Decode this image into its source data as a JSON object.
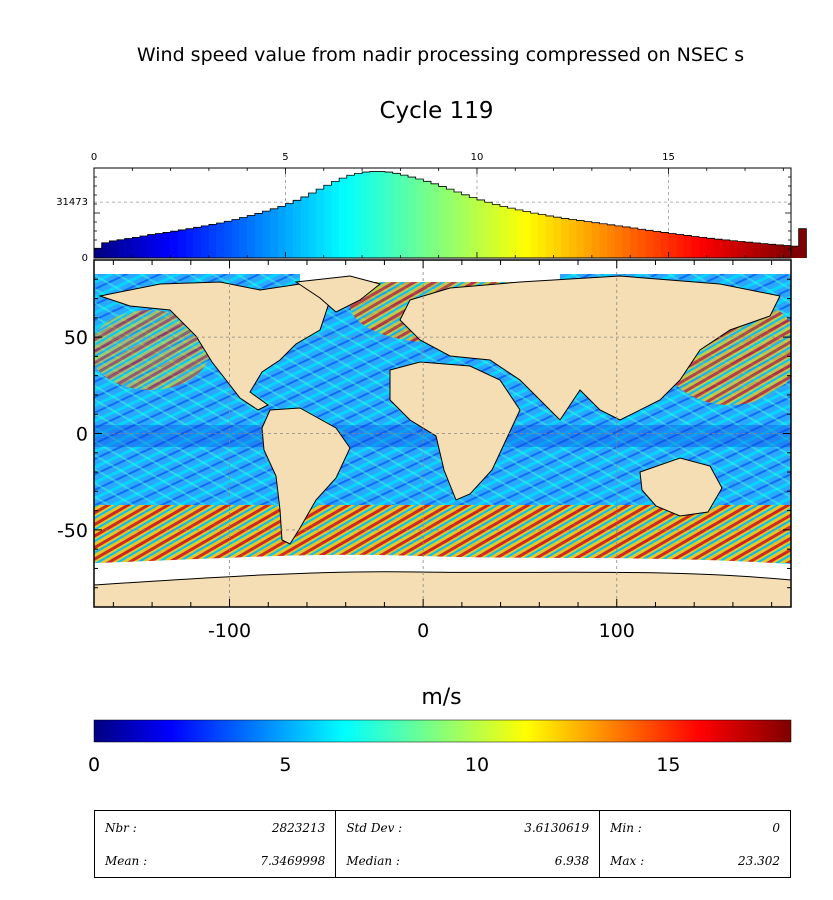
{
  "title": "Wind speed value from nadir processing compressed on NSEC s",
  "subtitle": "Cycle 119",
  "colorbar_label": "m/s",
  "chart_data": [
    {
      "type": "bar",
      "name": "histogram",
      "x_ticks": [
        "0",
        "5",
        "10",
        "15"
      ],
      "x_tick_values": [
        0,
        5,
        10,
        15
      ],
      "y_ticks": [
        "0",
        "31473"
      ],
      "y_tick_values": [
        0,
        31473
      ],
      "xlim": [
        0,
        18.2
      ],
      "ylim": [
        0,
        50700
      ],
      "bin_width": 0.2,
      "values": [
        5500,
        8600,
        9600,
        10300,
        11000,
        11600,
        12400,
        13200,
        13800,
        14400,
        15100,
        15800,
        16500,
        17300,
        18100,
        18900,
        19700,
        20700,
        21700,
        22800,
        23900,
        25100,
        26400,
        27700,
        29100,
        30700,
        32500,
        34400,
        36600,
        38800,
        41000,
        43100,
        45000,
        46600,
        47600,
        48400,
        48700,
        48700,
        48400,
        47700,
        46700,
        45600,
        44500,
        43200,
        41800,
        40300,
        38800,
        37200,
        35600,
        34100,
        32700,
        31400,
        30200,
        29100,
        28100,
        27100,
        26200,
        25300,
        24500,
        23700,
        23000,
        22300,
        21700,
        21100,
        20500,
        19900,
        19300,
        18700,
        18100,
        17500,
        16900,
        16200,
        15600,
        15000,
        14400,
        13800,
        13200,
        12700,
        12100,
        11600,
        11100,
        10600,
        10200,
        9700,
        9300,
        8900,
        8500,
        8100,
        7700,
        7400,
        7000,
        6700,
        16500
      ],
      "grid": true
    },
    {
      "type": "heatmap",
      "name": "map",
      "x_ticks": [
        "-100",
        "0",
        "100"
      ],
      "x_tick_values": [
        -100,
        0,
        100
      ],
      "y_ticks": [
        "50",
        "0",
        "-50"
      ],
      "y_tick_values": [
        50,
        0,
        -50
      ],
      "xlim": [
        -170,
        190
      ],
      "ylim": [
        -90,
        90
      ],
      "grid": true,
      "colorbar": {
        "ticks": [
          "0",
          "5",
          "10",
          "15"
        ],
        "tick_values": [
          0,
          5,
          10,
          15
        ],
        "range": [
          0,
          18.2
        ]
      }
    }
  ],
  "stats": {
    "nbr_label": "Nbr :",
    "nbr": "2823213",
    "mean_label": "Mean :",
    "mean": "7.3469998",
    "std_label": "Std Dev :",
    "std": "3.6130619",
    "median_label": "Median :",
    "median": "6.938",
    "min_label": "Min :",
    "min": "0",
    "max_label": "Max :",
    "max": "23.302"
  }
}
